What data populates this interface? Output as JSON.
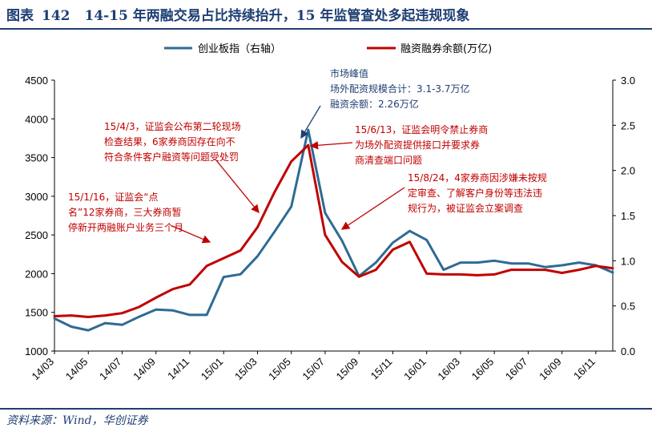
{
  "header": {
    "label": "图表",
    "number": "142",
    "title": "14-15 年两融交易占比持续抬升，15 年监管查处多起违规现象"
  },
  "source": "资料来源：Wind，华创证券",
  "colors": {
    "title": "#1f3f73",
    "blue_series": "#2e6b93",
    "red_series": "#c00000",
    "blue_annotation": "#1f3f73"
  },
  "chart_data": {
    "type": "line",
    "x_tick_labels": [
      "14/03",
      "14/05",
      "14/07",
      "14/09",
      "14/11",
      "15/01",
      "15/03",
      "15/05",
      "15/07",
      "15/09",
      "15/11",
      "16/01",
      "16/03",
      "16/05",
      "16/07",
      "16/09",
      "16/11"
    ],
    "x_range": [
      "14/03",
      "16/12"
    ],
    "y_left": {
      "min": 1000,
      "max": 4500,
      "ticks": [
        1000,
        1500,
        2000,
        2500,
        3000,
        3500,
        4000,
        4500
      ]
    },
    "y_right": {
      "min": 0.0,
      "max": 3.0,
      "ticks": [
        "0.0",
        "0.5",
        "1.0",
        "1.5",
        "2.0",
        "2.5",
        "3.0"
      ]
    },
    "legend": {
      "position": "top",
      "items": [
        "创业板指（右轴）",
        "融资融券余额(万亿)"
      ]
    },
    "series": [
      {
        "name": "创业板指（右轴）",
        "axis": "right",
        "color": "#2e6b93",
        "points": [
          [
            "14/03",
            0.36
          ],
          [
            "14/04",
            0.27
          ],
          [
            "14/05",
            0.23
          ],
          [
            "14/06",
            0.31
          ],
          [
            "14/07",
            0.29
          ],
          [
            "14/08",
            0.38
          ],
          [
            "14/09",
            0.46
          ],
          [
            "14/10",
            0.45
          ],
          [
            "14/11",
            0.4
          ],
          [
            "14/12",
            0.4
          ],
          [
            "15/01",
            0.82
          ],
          [
            "15/02",
            0.85
          ],
          [
            "15/03",
            1.05
          ],
          [
            "15/04",
            1.32
          ],
          [
            "15/05",
            1.6
          ],
          [
            "15/06",
            2.45
          ],
          [
            "15/07",
            1.53
          ],
          [
            "15/08",
            1.22
          ],
          [
            "15/09",
            0.83
          ],
          [
            "15/10",
            0.98
          ],
          [
            "15/11",
            1.2
          ],
          [
            "15/12",
            1.33
          ],
          [
            "16/01",
            1.23
          ],
          [
            "16/02",
            0.9
          ],
          [
            "16/03",
            0.98
          ],
          [
            "16/04",
            0.98
          ],
          [
            "16/05",
            1.0
          ],
          [
            "16/06",
            0.97
          ],
          [
            "16/07",
            0.97
          ],
          [
            "16/08",
            0.93
          ],
          [
            "16/09",
            0.95
          ],
          [
            "16/10",
            0.98
          ],
          [
            "16/11",
            0.95
          ],
          [
            "16/12",
            0.87
          ]
        ]
      },
      {
        "name": "融资融券余额(万亿)",
        "axis": "left",
        "color": "#c00000",
        "points": [
          [
            "14/03",
            1450
          ],
          [
            "14/04",
            1460
          ],
          [
            "14/05",
            1440
          ],
          [
            "14/06",
            1460
          ],
          [
            "14/07",
            1490
          ],
          [
            "14/08",
            1570
          ],
          [
            "14/09",
            1690
          ],
          [
            "14/10",
            1800
          ],
          [
            "14/11",
            1860
          ],
          [
            "14/12",
            2100
          ],
          [
            "15/01",
            2200
          ],
          [
            "15/02",
            2300
          ],
          [
            "15/03",
            2600
          ],
          [
            "15/04",
            3050
          ],
          [
            "15/05",
            3450
          ],
          [
            "15/06",
            3660
          ],
          [
            "15/07",
            2500
          ],
          [
            "15/08",
            2150
          ],
          [
            "15/09",
            1960
          ],
          [
            "15/10",
            2050
          ],
          [
            "15/11",
            2310
          ],
          [
            "15/12",
            2410
          ],
          [
            "16/01",
            2000
          ],
          [
            "16/02",
            1990
          ],
          [
            "16/03",
            1990
          ],
          [
            "16/04",
            1980
          ],
          [
            "16/05",
            1990
          ],
          [
            "16/06",
            2050
          ],
          [
            "16/07",
            2050
          ],
          [
            "16/08",
            2050
          ],
          [
            "16/09",
            2010
          ],
          [
            "16/10",
            2050
          ],
          [
            "16/11",
            2100
          ],
          [
            "16/12",
            2070
          ]
        ]
      }
    ],
    "annotations": [
      {
        "color": "#1f3f73",
        "lines": [
          "市场峰值",
          "场外配资规模合计：3.1-3.7万亿",
          "融资余额：2.26万亿"
        ]
      },
      {
        "color": "#c00000",
        "lines": [
          "15/4/3，证监会公布第二轮现场",
          "检查结果，6家券商因存在向不",
          "符合条件客户融资等问题受处罚"
        ]
      },
      {
        "color": "#c00000",
        "lines": [
          "15/1/16，证监会“点",
          "名”12家券商，三大券商暂",
          "停新开两融账户业务三个月"
        ]
      },
      {
        "color": "#c00000",
        "lines": [
          "15/6/13，证监会明令禁止券商",
          "为场外配资提供接口并要求券",
          "商清查端口问题"
        ]
      },
      {
        "color": "#c00000",
        "lines": [
          "15/8/24，4家券商因涉嫌未按规",
          "定审查、了解客户身份等违法违",
          "规行为，被证监会立案调查"
        ]
      }
    ]
  }
}
